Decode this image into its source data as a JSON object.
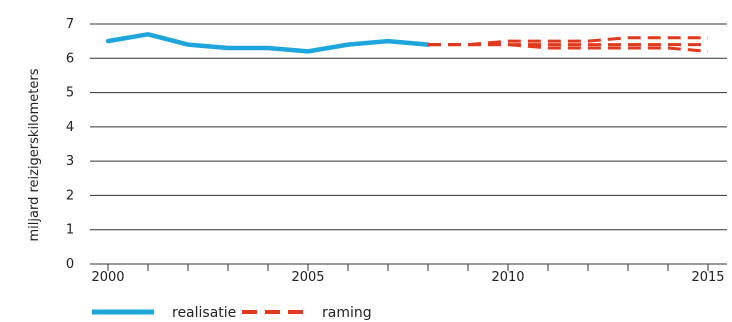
{
  "chart_data": {
    "type": "line",
    "title": "",
    "xlabel": "",
    "ylabel": "miljard reizigerskilometers",
    "xlim": [
      2000,
      2015
    ],
    "ylim": [
      0,
      7
    ],
    "x_ticks": [
      "2000",
      "2005",
      "2010",
      "2015"
    ],
    "y_ticks": [
      "0",
      "1",
      "2",
      "3",
      "4",
      "5",
      "6",
      "7"
    ],
    "grid": "horizontal",
    "legend_position": "bottom-left",
    "series": [
      {
        "name": "realisatie",
        "style": "solid",
        "color": "#1ea5dc",
        "x": [
          2000,
          2001,
          2002,
          2003,
          2004,
          2005,
          2006,
          2007,
          2008
        ],
        "values": [
          6.5,
          6.7,
          6.4,
          6.3,
          6.3,
          6.2,
          6.4,
          6.5,
          6.4
        ]
      },
      {
        "name": "raming",
        "style": "dashed",
        "color": "#e03a1e",
        "x": [
          2008,
          2009,
          2010,
          2011,
          2012,
          2013,
          2014,
          2015
        ],
        "values": [
          6.4,
          6.4,
          6.5,
          6.5,
          6.5,
          6.6,
          6.6,
          6.6
        ]
      },
      {
        "style": "dashed",
        "color": "#e03a1e",
        "x": [
          2008,
          2009,
          2010,
          2011,
          2012,
          2013,
          2014,
          2015
        ],
        "values": [
          6.4,
          6.4,
          6.4,
          6.4,
          6.4,
          6.4,
          6.4,
          6.4
        ]
      },
      {
        "style": "dashed",
        "color": "#e03a1e",
        "x": [
          2008,
          2009,
          2010,
          2011,
          2012,
          2013,
          2014,
          2015
        ],
        "values": [
          6.4,
          6.4,
          6.4,
          6.3,
          6.3,
          6.3,
          6.3,
          6.2
        ]
      }
    ]
  }
}
